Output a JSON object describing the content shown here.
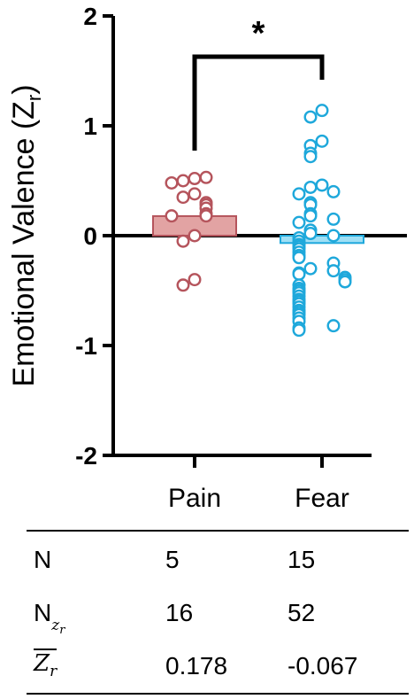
{
  "chart_data": {
    "type": "bar",
    "overlay": "scatter",
    "categories": [
      "Pain",
      "Fear"
    ],
    "ylabel": "Emotional Valence (Z",
    "ylabel_sub": "r",
    "ylabel_close": ")",
    "ylim": [
      -2,
      2
    ],
    "yticks": [
      "2",
      "1",
      "0",
      "-1",
      "-2"
    ],
    "ytick_values": [
      2,
      1,
      0,
      -1,
      -2
    ],
    "bars": [
      {
        "category": "Pain",
        "value": 0.178,
        "fill": "#e2a3a3",
        "edge": "#b5545c"
      },
      {
        "category": "Fear",
        "value": -0.067,
        "fill": "#9fdff5",
        "edge": "#1ea8db"
      }
    ],
    "points": {
      "Pain": [
        0.52,
        0.5,
        0.53,
        0.48,
        0.38,
        0.35,
        0.3,
        0.28,
        0.25,
        0.2,
        0.18,
        0.18,
        0.0,
        -0.05,
        -0.4,
        -0.45
      ],
      "Fear": [
        1.14,
        1.08,
        0.86,
        0.82,
        0.75,
        0.72,
        0.46,
        0.44,
        0.4,
        0.38,
        0.3,
        0.28,
        0.2,
        0.18,
        0.15,
        0.12,
        0.05,
        0.02,
        0.0,
        -0.02,
        -0.05,
        -0.08,
        -0.1,
        -0.12,
        -0.15,
        -0.18,
        -0.2,
        -0.25,
        -0.3,
        -0.32,
        -0.34,
        -0.35,
        -0.38,
        -0.4,
        -0.42,
        -0.45,
        -0.48,
        -0.5,
        -0.52,
        -0.55,
        -0.58,
        -0.6,
        -0.62,
        -0.65,
        -0.68,
        -0.7,
        -0.72,
        -0.75,
        -0.78,
        -0.82,
        -0.84,
        -0.86
      ]
    },
    "significance": "*",
    "colors": {
      "pain": "#b5545c",
      "fear": "#1ea8db",
      "axis": "#000000"
    }
  },
  "table": {
    "rows": [
      {
        "label": "N",
        "pain": "5",
        "fear": "15"
      },
      {
        "label": "N",
        "label_sub": "z",
        "label_subsub": "r",
        "pain": "16",
        "fear": "52"
      },
      {
        "label": "Z",
        "label_sub": "r",
        "label_overline": true,
        "pain": "0.178",
        "fear": "-0.067"
      }
    ]
  }
}
